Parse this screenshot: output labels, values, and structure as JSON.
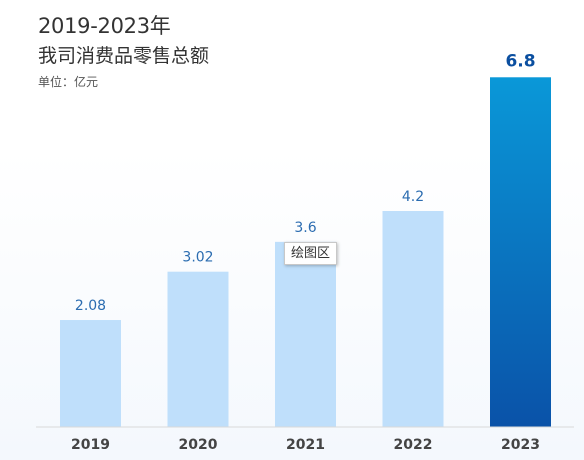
{
  "chart_data": {
    "type": "bar",
    "title": "2019-2023年",
    "subtitle": "我司消费品零售总额",
    "unit_label": "单位：亿元",
    "categories": [
      "2019",
      "2020",
      "2021",
      "2022",
      "2023"
    ],
    "values": [
      2.08,
      3.02,
      3.6,
      4.2,
      6.8
    ],
    "value_labels": [
      "2.08",
      "3.02",
      "3.6",
      "4.2",
      "6.8"
    ],
    "ylim": [
      0,
      7.0
    ],
    "grid": false,
    "legend": "none",
    "colors": {
      "bar": "#bfdffb",
      "highlight_top": "#0a98d8",
      "highlight_bottom": "#0a52a8",
      "label": "#2b6cb0",
      "highlight_label": "#0b4fa0",
      "axis_text": "#444444",
      "axis_line": "#d9d9d9"
    },
    "highlight_index": 4
  },
  "tooltip": {
    "text": "绘图区"
  }
}
